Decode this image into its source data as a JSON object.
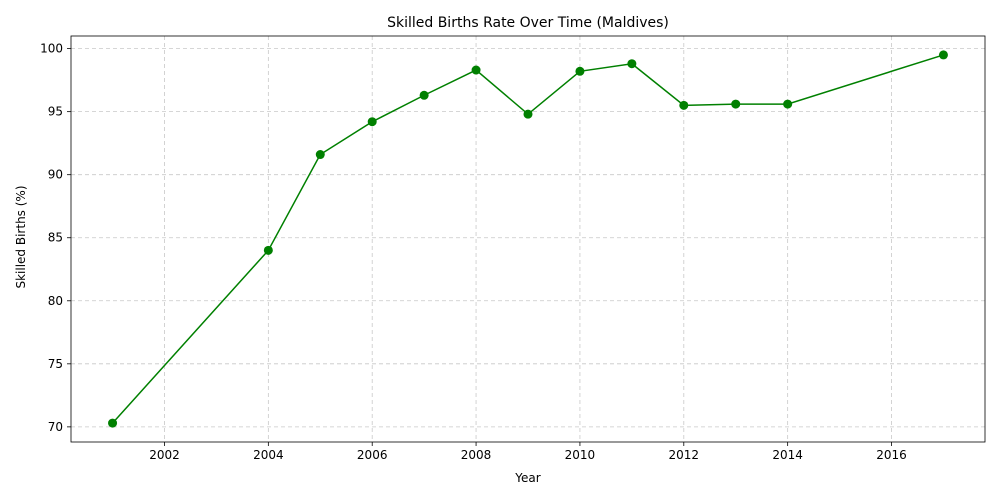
{
  "chart_data": {
    "type": "line",
    "title": "Skilled Births Rate Over Time (Maldives)",
    "xlabel": "Year",
    "ylabel": "Skilled Births (%)",
    "xlim": [
      2000.2,
      2017.8
    ],
    "ylim": [
      68.8,
      101.0
    ],
    "x_ticks": [
      2002,
      2004,
      2006,
      2008,
      2010,
      2012,
      2014,
      2016
    ],
    "y_ticks": [
      70,
      75,
      80,
      85,
      90,
      95,
      100
    ],
    "grid": true,
    "grid_style": "dashed",
    "legend": "none",
    "marker": "circle",
    "color": "#008000",
    "series": [
      {
        "x": [
          2001,
          2004,
          2005,
          2006,
          2007,
          2008,
          2009,
          2010,
          2011,
          2012,
          2013,
          2014,
          2017
        ],
        "y": [
          70.3,
          84.0,
          91.6,
          94.2,
          96.3,
          98.3,
          94.8,
          98.2,
          98.8,
          95.5,
          95.6,
          95.6,
          99.5
        ]
      }
    ]
  }
}
